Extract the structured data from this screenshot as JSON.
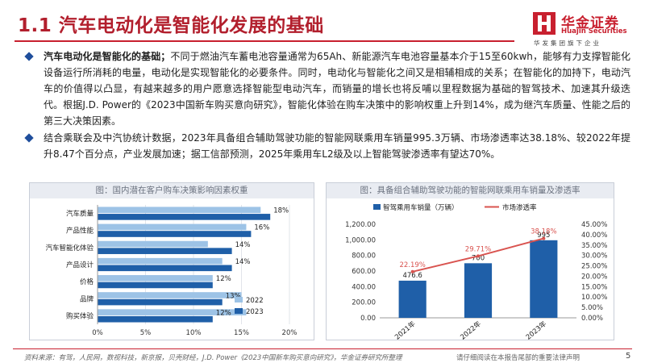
{
  "header": {
    "title": "1.1 汽车电动化是智能化发展的基础",
    "logo_cn": "华金证券",
    "logo_en": "Huajin Securities",
    "logo_tag": "华发集团旗下企业"
  },
  "bullets": [
    {
      "lead": "汽车电动化是智能化的基础；",
      "text": "不同于燃油汽车蓄电池容量通常为65Ah、新能源汽车电池容量基本介于15至60kwh，能够有力支撑智能化设备运行所消耗的电量，电动化是实现智能化的必要条件。同时，电动化与智能化之间又是相辅相成的关系；在智能化的加持下，电动汽车的价值得以凸显，有越来越多的用户愿意选择智能型电动汽车，而销量的增长也将反哺以里程数据为基础的智驾技术、加速其升级迭代。根据J.D. Power的《2023中国新车购买意向研究》，智能化体验在购车决策中的影响权重上升到14%，成为继汽车质量、性能之后的第三大决策因素。"
    },
    {
      "lead": "",
      "text": "结合乘联会及中汽协统计数据，2023年具备组合辅助驾驶功能的智能网联乘用车销量995.3万辆、市场渗透率达38.18%、较2022年提升8.47个百分点，产业发展加速；据工信部预测，2025年乘用车L2级及以上智能驾驶渗透率有望达70%。"
    }
  ],
  "chart_titles": {
    "left": "图：国内潜在客户购车决策影响因素权重",
    "right": "图：具备组合辅助驾驶功能的智能网联乘用车销量及渗透率"
  },
  "chart_data": [
    {
      "type": "bar",
      "orientation": "horizontal",
      "title": "图：国内潜在客户购车决策影响因素权重",
      "categories": [
        "汽车质量",
        "产品性能",
        "汽车智能化体验",
        "产品设计",
        "价格",
        "品牌",
        "购买体验"
      ],
      "series": [
        {
          "name": "2022",
          "color": "#9dc3e6",
          "values": [
            17,
            15.5,
            11.5,
            13,
            12,
            15,
            15.5
          ]
        },
        {
          "name": "2023",
          "color": "#1f5fa8",
          "values": [
            18,
            16,
            14,
            14,
            12,
            13,
            12
          ]
        }
      ],
      "data_labels": [
        "18%",
        "16%",
        "14%",
        "14%",
        "12%",
        "13%",
        "12%"
      ],
      "xlim": [
        0,
        20
      ],
      "x_ticks": [
        "0%",
        "5%",
        "10%",
        "15%",
        "20%"
      ],
      "legend": [
        "2022",
        "2023"
      ],
      "legend_position": "lower-right"
    },
    {
      "type": "bar+line",
      "title": "图：具备组合辅助驾驶功能的智能网联乘用车销量及渗透率",
      "categories": [
        "2021年",
        "2022年",
        "2023年"
      ],
      "series": [
        {
          "name": "智驾乘用车销量（万辆）",
          "type": "bar",
          "axis": "left",
          "color": "#1f5fa8",
          "values": [
            476.6,
            700,
            995
          ],
          "labels": [
            "476.6",
            "700",
            "995"
          ]
        },
        {
          "name": "市场渗透率",
          "type": "line",
          "axis": "right",
          "color": "#d9534f",
          "values": [
            22.19,
            29.71,
            38.18
          ],
          "labels": [
            "22.19%",
            "29.71%",
            "38.18%"
          ]
        }
      ],
      "y_left": {
        "lim": [
          0,
          1200
        ],
        "ticks": [
          "0.00",
          "200.00",
          "400.00",
          "600.00",
          "800.00",
          "1,000.00",
          "1,200.00"
        ]
      },
      "y_right": {
        "lim": [
          0,
          45
        ],
        "ticks": [
          "0.00%",
          "5.00%",
          "10.00%",
          "15.00%",
          "20.00%",
          "25.00%",
          "30.00%",
          "35.00%",
          "40.00%",
          "45.00%"
        ]
      },
      "legend_position": "top"
    }
  ],
  "footer": {
    "source": "资料来源：有驾，人民网，数视科技，新京报，贝壳财经，J.D. Power《2023中国新车购买意向研究》，华金证券研究所整理",
    "legal": "请仔细阅读在本报告尾部的重要法律声明",
    "page": "5"
  },
  "colors": {
    "brand_red": "#c8202f",
    "bullet_blue": "#1f4e9c"
  }
}
